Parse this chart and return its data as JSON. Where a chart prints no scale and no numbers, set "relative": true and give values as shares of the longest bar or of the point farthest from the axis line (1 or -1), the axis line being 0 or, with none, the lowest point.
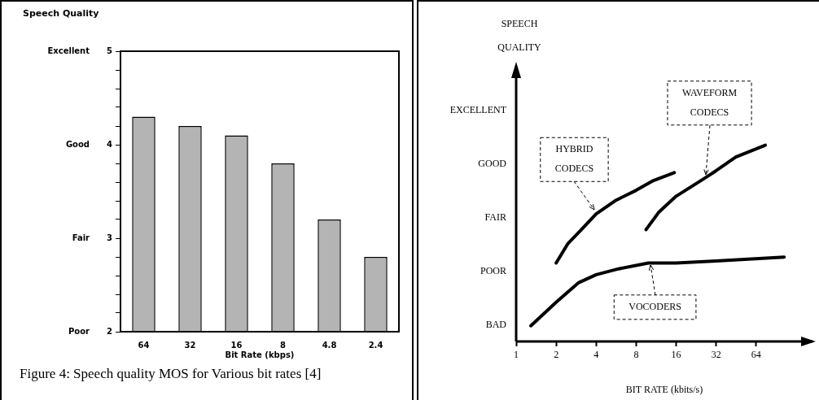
{
  "chart_data": [
    {
      "type": "bar",
      "ylabel": "Speech Quality",
      "xlabel": "Bit Rate (kbps)",
      "categories": [
        "64",
        "32",
        "16",
        "8",
        "4.8",
        "2.4"
      ],
      "values": [
        4.3,
        4.2,
        4.1,
        3.8,
        3.2,
        2.8
      ],
      "color": "#b4b4b4",
      "ylim": [
        2,
        5
      ],
      "yticks": [
        2,
        {
          "value": 2.2,
          "label": null
        },
        {
          "value": 2.4,
          "label": null
        },
        {
          "value": 2.6,
          "label": null
        },
        {
          "value": 2.8,
          "label": null
        },
        3,
        {
          "value": 3.2,
          "label": null
        },
        {
          "value": 3.4,
          "label": null
        },
        {
          "value": 3.6,
          "label": null
        },
        {
          "value": 3.8,
          "label": null
        },
        4,
        {
          "value": 4.2,
          "label": null
        },
        {
          "value": 4.4,
          "label": null
        },
        {
          "value": 4.6,
          "label": null
        },
        {
          "value": 4.8,
          "label": null
        },
        5
      ],
      "grid": false,
      "legend": false,
      "annotations": [
        "Figure 4: Speech quality MOS for Various bit rates [4]",
        "Poor",
        "Fair",
        "Good",
        "Excellent"
      ]
    },
    {
      "type": "line",
      "ylabel": "SPEECH QUALITY",
      "xlabel": "BIT RATE (kbits/s)",
      "log": "x",
      "xlim": [
        1,
        170
      ],
      "xticks": [
        1,
        2,
        4,
        8,
        16,
        32,
        64
      ],
      "relative": true,
      "series": [
        {
          "color": "#000000",
          "x": [
            2,
            2.46,
            3.1,
            4,
            5.66,
            8,
            10.8,
            15.5
          ],
          "values": [
            0.4,
            0.5,
            0.57,
            0.65,
            0.72,
            0.77,
            0.82,
            0.86
          ]
        },
        {
          "color": "#000000",
          "x": [
            9.5,
            11.9,
            16,
            26,
            32,
            45,
            75
          ],
          "values": [
            0.57,
            0.66,
            0.74,
            0.83,
            0.87,
            0.94,
            1
          ]
        },
        {
          "color": "#000000",
          "x": [
            1.29,
            2,
            2.96,
            4,
            5.9,
            9.9,
            16,
            32,
            104
          ],
          "values": [
            0.08,
            0.2,
            0.3,
            0.34,
            0.37,
            0.4,
            0.4,
            0.41,
            0.43
          ]
        }
      ],
      "marker": "none",
      "line_style": "solid",
      "grid": false,
      "legend": false,
      "annotations": [
        {
          "text": "HYBRID CODECS",
          "x": 3.9,
          "y": 0.67
        },
        {
          "text": "WAVEFORM CODECS",
          "x": 26.6,
          "y": 0.85
        },
        {
          "text": "VOCODERS",
          "x": 10.2,
          "y": 0.39
        },
        "BAD",
        "POOR",
        "FAIR",
        "GOOD",
        "EXCELLENT"
      ]
    }
  ]
}
